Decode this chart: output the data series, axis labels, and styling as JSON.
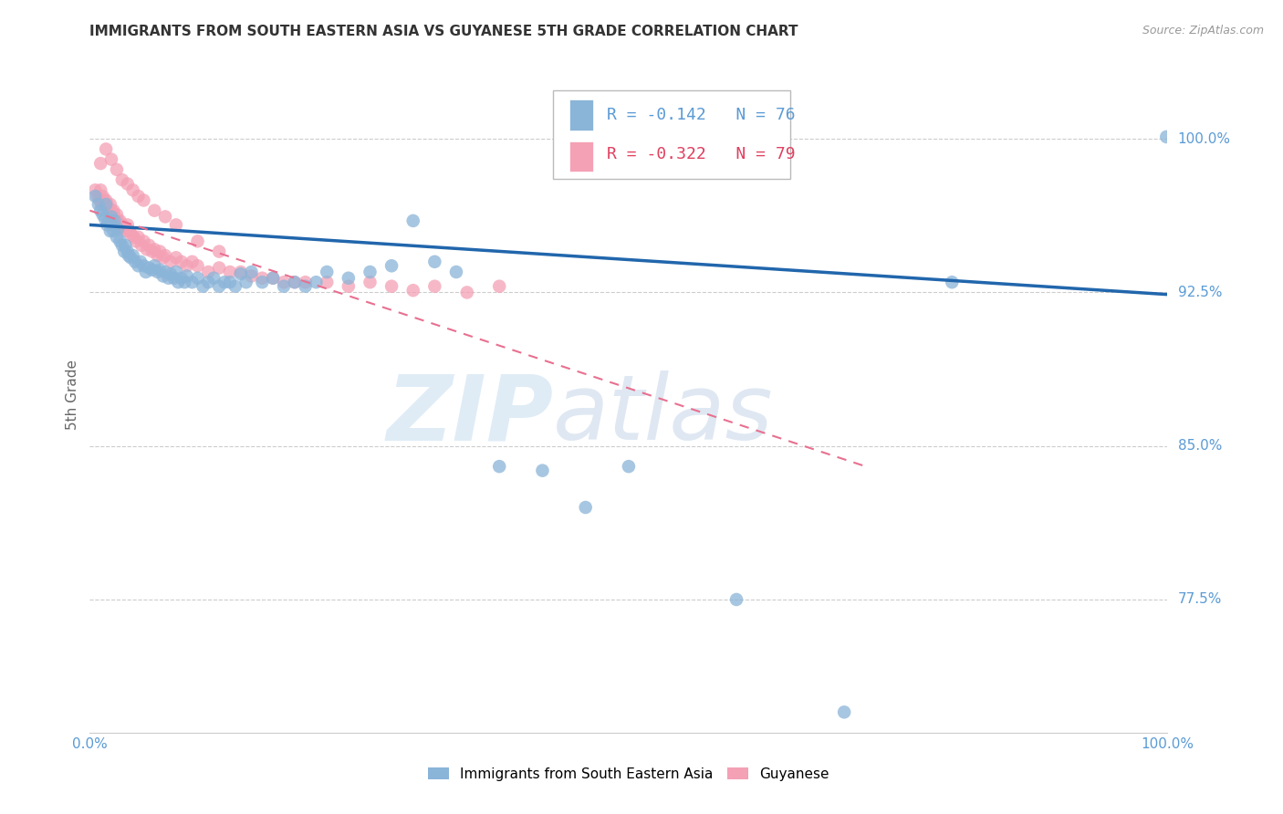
{
  "title": "IMMIGRANTS FROM SOUTH EASTERN ASIA VS GUYANESE 5TH GRADE CORRELATION CHART",
  "source": "Source: ZipAtlas.com",
  "ylabel": "5th Grade",
  "x_tick_labels": [
    "0.0%",
    "100.0%"
  ],
  "y_tick_values": [
    0.775,
    0.85,
    0.925,
    1.0
  ],
  "x_lim": [
    0.0,
    1.0
  ],
  "y_lim": [
    0.71,
    1.04
  ],
  "legend_blue_r": "-0.142",
  "legend_blue_n": "76",
  "legend_pink_r": "-0.322",
  "legend_pink_n": "79",
  "legend_label_blue": "Immigrants from South Eastern Asia",
  "legend_label_pink": "Guyanese",
  "watermark_zip": "ZIP",
  "watermark_atlas": "atlas",
  "blue_color": "#8ab4d8",
  "pink_color": "#f4a0b5",
  "blue_line_color": "#2166ac",
  "pink_line_color": "#e87090",
  "grid_color": "#cccccc",
  "title_color": "#333333",
  "axis_label_color": "#666666",
  "right_label_color": "#5b9bd5",
  "blue_scatter_x": [
    0.005,
    0.008,
    0.01,
    0.012,
    0.014,
    0.015,
    0.016,
    0.018,
    0.019,
    0.02,
    0.021,
    0.022,
    0.023,
    0.025,
    0.026,
    0.028,
    0.03,
    0.032,
    0.033,
    0.035,
    0.036,
    0.038,
    0.04,
    0.042,
    0.045,
    0.047,
    0.05,
    0.052,
    0.055,
    0.058,
    0.06,
    0.063,
    0.065,
    0.068,
    0.07,
    0.073,
    0.075,
    0.078,
    0.08,
    0.082,
    0.085,
    0.088,
    0.09,
    0.095,
    0.1,
    0.105,
    0.11,
    0.115,
    0.12,
    0.125,
    0.13,
    0.135,
    0.14,
    0.145,
    0.15,
    0.16,
    0.17,
    0.18,
    0.19,
    0.2,
    0.21,
    0.22,
    0.24,
    0.26,
    0.28,
    0.3,
    0.32,
    0.34,
    0.38,
    0.42,
    0.46,
    0.5,
    0.6,
    0.7,
    0.8,
    0.999
  ],
  "blue_scatter_y": [
    0.972,
    0.968,
    0.965,
    0.963,
    0.961,
    0.968,
    0.958,
    0.96,
    0.955,
    0.962,
    0.958,
    0.955,
    0.96,
    0.952,
    0.956,
    0.95,
    0.948,
    0.945,
    0.948,
    0.945,
    0.943,
    0.942,
    0.943,
    0.94,
    0.938,
    0.94,
    0.938,
    0.935,
    0.937,
    0.936,
    0.938,
    0.935,
    0.936,
    0.933,
    0.935,
    0.932,
    0.934,
    0.932,
    0.935,
    0.93,
    0.932,
    0.93,
    0.933,
    0.93,
    0.932,
    0.928,
    0.93,
    0.932,
    0.928,
    0.93,
    0.93,
    0.928,
    0.934,
    0.93,
    0.935,
    0.93,
    0.932,
    0.928,
    0.93,
    0.928,
    0.93,
    0.935,
    0.932,
    0.935,
    0.938,
    0.96,
    0.94,
    0.935,
    0.84,
    0.838,
    0.82,
    0.84,
    0.775,
    0.72,
    0.93,
    1.001
  ],
  "pink_scatter_x": [
    0.005,
    0.007,
    0.009,
    0.01,
    0.011,
    0.012,
    0.013,
    0.014,
    0.015,
    0.016,
    0.017,
    0.018,
    0.019,
    0.02,
    0.021,
    0.022,
    0.023,
    0.024,
    0.025,
    0.026,
    0.027,
    0.028,
    0.03,
    0.032,
    0.034,
    0.035,
    0.037,
    0.039,
    0.041,
    0.043,
    0.045,
    0.048,
    0.05,
    0.053,
    0.055,
    0.058,
    0.06,
    0.063,
    0.065,
    0.068,
    0.07,
    0.075,
    0.08,
    0.085,
    0.09,
    0.095,
    0.1,
    0.11,
    0.12,
    0.13,
    0.14,
    0.15,
    0.16,
    0.17,
    0.18,
    0.19,
    0.2,
    0.22,
    0.24,
    0.26,
    0.28,
    0.3,
    0.32,
    0.35,
    0.38,
    0.01,
    0.015,
    0.02,
    0.025,
    0.03,
    0.035,
    0.04,
    0.045,
    0.05,
    0.06,
    0.07,
    0.08,
    0.1,
    0.12
  ],
  "pink_scatter_y": [
    0.975,
    0.972,
    0.97,
    0.975,
    0.968,
    0.972,
    0.97,
    0.968,
    0.97,
    0.968,
    0.966,
    0.965,
    0.968,
    0.965,
    0.963,
    0.965,
    0.962,
    0.96,
    0.963,
    0.96,
    0.958,
    0.96,
    0.958,
    0.956,
    0.955,
    0.958,
    0.955,
    0.953,
    0.952,
    0.95,
    0.952,
    0.948,
    0.95,
    0.946,
    0.948,
    0.945,
    0.946,
    0.943,
    0.945,
    0.942,
    0.943,
    0.94,
    0.942,
    0.94,
    0.938,
    0.94,
    0.938,
    0.935,
    0.937,
    0.935,
    0.935,
    0.933,
    0.932,
    0.932,
    0.93,
    0.93,
    0.93,
    0.93,
    0.928,
    0.93,
    0.928,
    0.926,
    0.928,
    0.925,
    0.928,
    0.988,
    0.995,
    0.99,
    0.985,
    0.98,
    0.978,
    0.975,
    0.972,
    0.97,
    0.965,
    0.962,
    0.958,
    0.95,
    0.945
  ],
  "blue_trendline_y_start": 0.958,
  "blue_trendline_y_end": 0.924,
  "pink_trendline_y_start": 0.965,
  "pink_trendline_y_end": 0.84,
  "pink_trendline_x_end": 0.72
}
